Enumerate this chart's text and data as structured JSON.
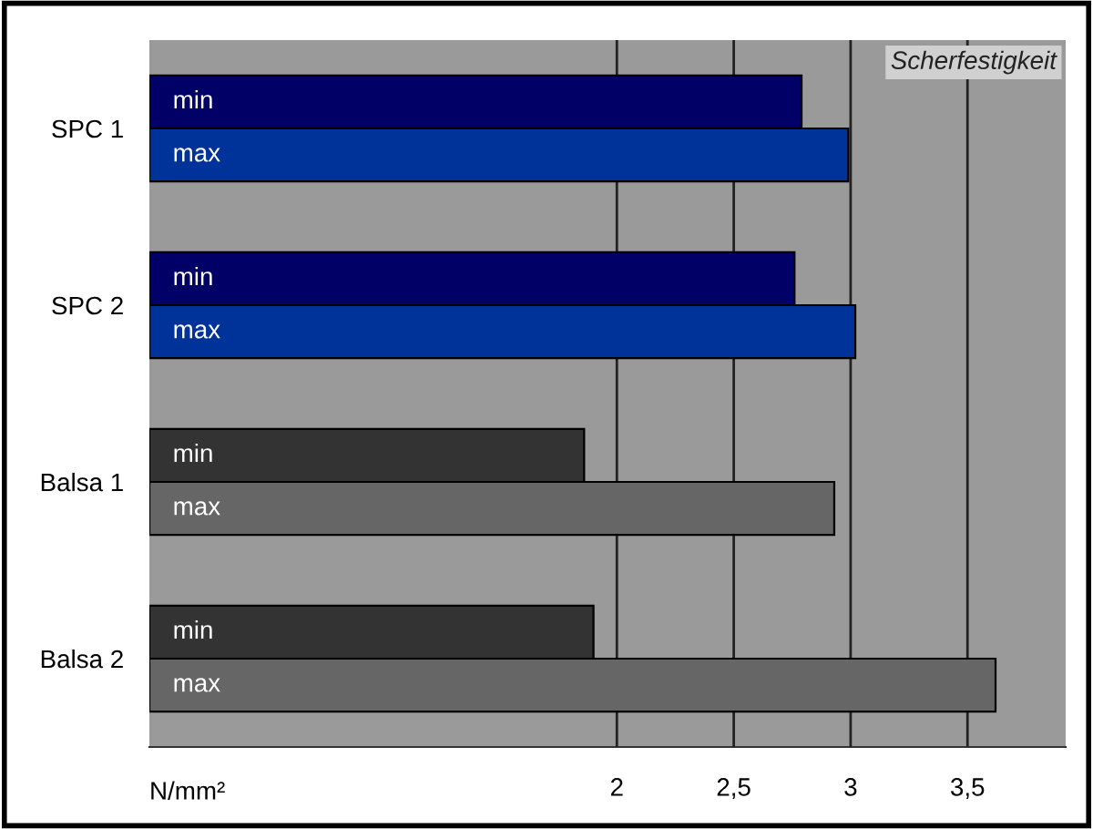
{
  "chart_data": {
    "type": "bar",
    "orientation": "horizontal",
    "title": "Scherfestigkeit",
    "xlabel": "N/mm²",
    "categories": [
      "SPC 1",
      "SPC 2",
      "Balsa 1",
      "Balsa 2"
    ],
    "series": [
      {
        "name": "min",
        "colors": [
          "#000066",
          "#000066",
          "#333333",
          "#333333"
        ],
        "values": [
          2.79,
          2.76,
          1.86,
          1.9
        ]
      },
      {
        "name": "max",
        "colors": [
          "#003399",
          "#003399",
          "#666666",
          "#666666"
        ],
        "values": [
          2.99,
          3.02,
          2.93,
          3.62
        ]
      }
    ],
    "xlim": [
      0,
      3.92
    ],
    "xticks": [
      2,
      {
        "value": 2.5,
        "label": "2,5"
      },
      3,
      {
        "value": 3.5,
        "label": "3,5"
      }
    ],
    "grid": "x"
  }
}
